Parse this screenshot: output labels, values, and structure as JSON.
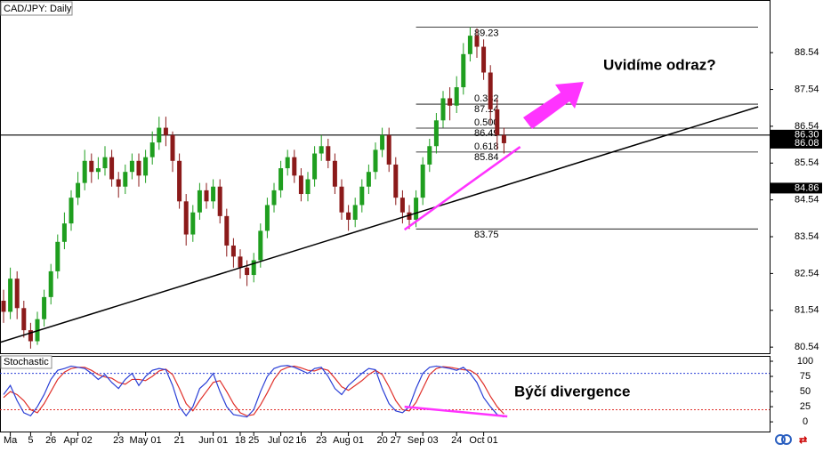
{
  "chart_data": [
    {
      "type": "candlestick",
      "title": "CAD/JPY: Daily",
      "categories": [
        null,
        "Ma",
        null,
        null,
        "5",
        null,
        null,
        "26",
        null,
        null,
        null,
        "Apr 02",
        null,
        null,
        null,
        null,
        null,
        "23",
        null,
        null,
        null,
        "May 01",
        null,
        null,
        null,
        null,
        "21",
        null,
        null,
        null,
        null,
        "Jun 01",
        null,
        null,
        null,
        "18",
        null,
        "25",
        null,
        null,
        null,
        "Jul 02",
        null,
        null,
        "16",
        null,
        null,
        "23",
        null,
        null,
        null,
        "Aug 01",
        null,
        null,
        null,
        null,
        "20",
        null,
        "27",
        null,
        null,
        null,
        "Sep 03",
        null,
        null,
        null,
        null,
        "24",
        null,
        null,
        null,
        "Oct 01",
        null,
        null,
        null
      ],
      "open": [
        81.8,
        81.5,
        82.4,
        81.6,
        81.0,
        80.7,
        81.3,
        81.9,
        82.6,
        83.4,
        83.9,
        84.6,
        85.0,
        85.6,
        85.3,
        85.4,
        85.7,
        85.1,
        84.9,
        85.3,
        85.6,
        85.2,
        85.7,
        86.1,
        86.5,
        86.3,
        85.6,
        84.5,
        83.6,
        84.2,
        84.8,
        84.5,
        84.9,
        84.1,
        83.3,
        83.0,
        82.7,
        82.5,
        82.9,
        83.7,
        84.4,
        84.8,
        85.4,
        85.7,
        85.2,
        84.7,
        85.1,
        85.8,
        86.0,
        85.6,
        84.9,
        84.2,
        84.0,
        84.4,
        84.9,
        85.3,
        85.9,
        86.3,
        85.5,
        84.6,
        84.2,
        84.0,
        84.6,
        85.5,
        86.0,
        86.7,
        87.3,
        87.1,
        87.6,
        88.5,
        89.0,
        88.7,
        88.0,
        87.0,
        86.3
      ],
      "high": [
        82.1,
        82.7,
        82.6,
        81.8,
        81.2,
        81.5,
        82.1,
        82.8,
        83.6,
        84.2,
        84.8,
        85.3,
        85.9,
        85.8,
        85.7,
        86.0,
        85.9,
        85.3,
        85.5,
        85.8,
        85.8,
        85.9,
        86.4,
        86.8,
        86.8,
        86.4,
        85.8,
        84.7,
        84.4,
        85.0,
        85.0,
        85.1,
        85.1,
        84.3,
        83.5,
        83.2,
        82.9,
        83.1,
        83.9,
        84.6,
        85.0,
        85.6,
        85.9,
        85.9,
        85.4,
        85.3,
        86.0,
        86.3,
        86.2,
        85.8,
        85.1,
        84.4,
        84.6,
        85.1,
        85.5,
        86.1,
        86.5,
        86.5,
        85.7,
        84.8,
        84.4,
        84.8,
        85.7,
        86.2,
        86.9,
        87.5,
        87.6,
        87.9,
        88.8,
        89.23,
        89.2,
        88.9,
        88.2,
        87.3,
        86.5
      ],
      "low": [
        81.2,
        81.3,
        81.3,
        80.8,
        80.5,
        80.6,
        81.1,
        81.7,
        82.4,
        83.2,
        83.7,
        84.4,
        84.8,
        85.0,
        85.1,
        85.2,
        84.9,
        84.6,
        84.7,
        85.1,
        84.9,
        85.0,
        85.5,
        85.9,
        86.0,
        85.3,
        84.3,
        83.3,
        83.4,
        84.0,
        84.3,
        84.3,
        83.9,
        83.0,
        82.7,
        82.4,
        82.2,
        82.3,
        82.7,
        83.5,
        84.2,
        84.6,
        85.2,
        85.0,
        84.5,
        84.5,
        84.9,
        85.6,
        85.4,
        84.7,
        84.0,
        83.7,
        83.8,
        84.2,
        84.7,
        85.1,
        85.7,
        85.3,
        84.4,
        83.9,
        83.75,
        83.8,
        84.4,
        85.3,
        85.8,
        86.5,
        86.7,
        86.9,
        87.4,
        88.3,
        88.4,
        87.8,
        86.6,
        85.9,
        85.8
      ],
      "close": [
        81.5,
        82.4,
        81.6,
        81.0,
        80.7,
        81.3,
        81.9,
        82.6,
        83.4,
        83.9,
        84.6,
        85.0,
        85.6,
        85.3,
        85.4,
        85.7,
        85.1,
        84.9,
        85.3,
        85.6,
        85.2,
        85.7,
        86.1,
        86.5,
        86.3,
        85.6,
        84.5,
        83.6,
        84.2,
        84.8,
        84.5,
        84.9,
        84.1,
        83.3,
        83.0,
        82.7,
        82.5,
        82.9,
        83.7,
        84.4,
        84.8,
        85.4,
        85.7,
        85.2,
        84.7,
        85.1,
        85.8,
        86.0,
        85.6,
        84.9,
        84.2,
        84.0,
        84.4,
        84.9,
        85.3,
        85.9,
        86.3,
        85.5,
        84.6,
        84.2,
        84.0,
        84.6,
        85.5,
        86.0,
        86.7,
        87.3,
        87.1,
        87.6,
        88.5,
        89.0,
        88.7,
        88.0,
        87.0,
        86.3,
        86.08
      ],
      "up_color": "#1f9e1f",
      "down_color": "#8b1a1a",
      "ylim": [
        80.35,
        89.97
      ],
      "yticks": [
        80.54,
        81.54,
        82.54,
        83.54,
        84.54,
        85.54,
        86.54,
        87.54,
        88.54
      ],
      "price_tags": [
        {
          "value": 86.3,
          "label": "86.30"
        },
        {
          "value": 86.08,
          "label": "86.08"
        },
        {
          "value": 84.86,
          "label": "84.86"
        }
      ],
      "fibonacci": {
        "high": 89.23,
        "low": 83.75,
        "start": 61,
        "levels": [
          {
            "ratio": 0.382,
            "price": 87.14
          },
          {
            "ratio": {
              "value": 0.5,
              "label": "0.500"
            },
            "price": 86.49
          },
          {
            "ratio": 0.618,
            "price": 85.84
          }
        ]
      },
      "trendline": {
        "x": [
          -0.5,
          111.6
        ],
        "y": [
          80.67,
          87.07
        ],
        "color": "#000000"
      },
      "divergence_line": {
        "x": [
          59.3,
          76.4
        ],
        "y": [
          83.73,
          85.98
        ],
        "color": "#ff33ff"
      },
      "annotation": "Uvidíme odraz?"
    },
    {
      "type": "line",
      "title": "Stochastic",
      "series": [
        {
          "color": "#2a3fd6",
          "values": [
            45,
            60,
            35,
            15,
            10,
            25,
            45,
            70,
            85,
            88,
            92,
            90,
            88,
            80,
            70,
            78,
            65,
            55,
            70,
            80,
            60,
            75,
            85,
            88,
            86,
            60,
            25,
            10,
            25,
            55,
            65,
            80,
            50,
            25,
            12,
            10,
            8,
            20,
            50,
            75,
            88,
            92,
            93,
            90,
            85,
            80,
            88,
            90,
            75,
            55,
            45,
            60,
            70,
            80,
            88,
            86,
            55,
            30,
            18,
            15,
            25,
            55,
            80,
            90,
            92,
            90,
            88,
            85,
            90,
            80,
            65,
            40,
            25,
            12,
            8
          ]
        },
        {
          "color": "#e0302a",
          "values": [
            40,
            50,
            45,
            35,
            20,
            15,
            30,
            50,
            70,
            82,
            88,
            90,
            90,
            85,
            78,
            74,
            72,
            65,
            62,
            70,
            70,
            68,
            75,
            84,
            87,
            78,
            55,
            30,
            18,
            35,
            50,
            65,
            68,
            50,
            30,
            15,
            10,
            12,
            28,
            48,
            70,
            85,
            90,
            92,
            89,
            85,
            84,
            88,
            85,
            72,
            58,
            52,
            60,
            68,
            78,
            85,
            78,
            58,
            35,
            20,
            18,
            32,
            55,
            78,
            88,
            91,
            90,
            88,
            86,
            85,
            78,
            62,
            42,
            25,
            13
          ]
        }
      ],
      "ylim": [
        -16,
        108.8
      ],
      "yticks": [
        0,
        25,
        50,
        75,
        100
      ],
      "levels": [
        {
          "value": 80,
          "color": "#2a3fd6"
        },
        {
          "value": 20,
          "color": "#e0302a"
        }
      ],
      "divergence_line": {
        "x": [
          59.3,
          74.5
        ],
        "y": [
          25,
          9
        ],
        "color": "#ff33ff"
      },
      "annotation": "Býčí divergence"
    }
  ]
}
